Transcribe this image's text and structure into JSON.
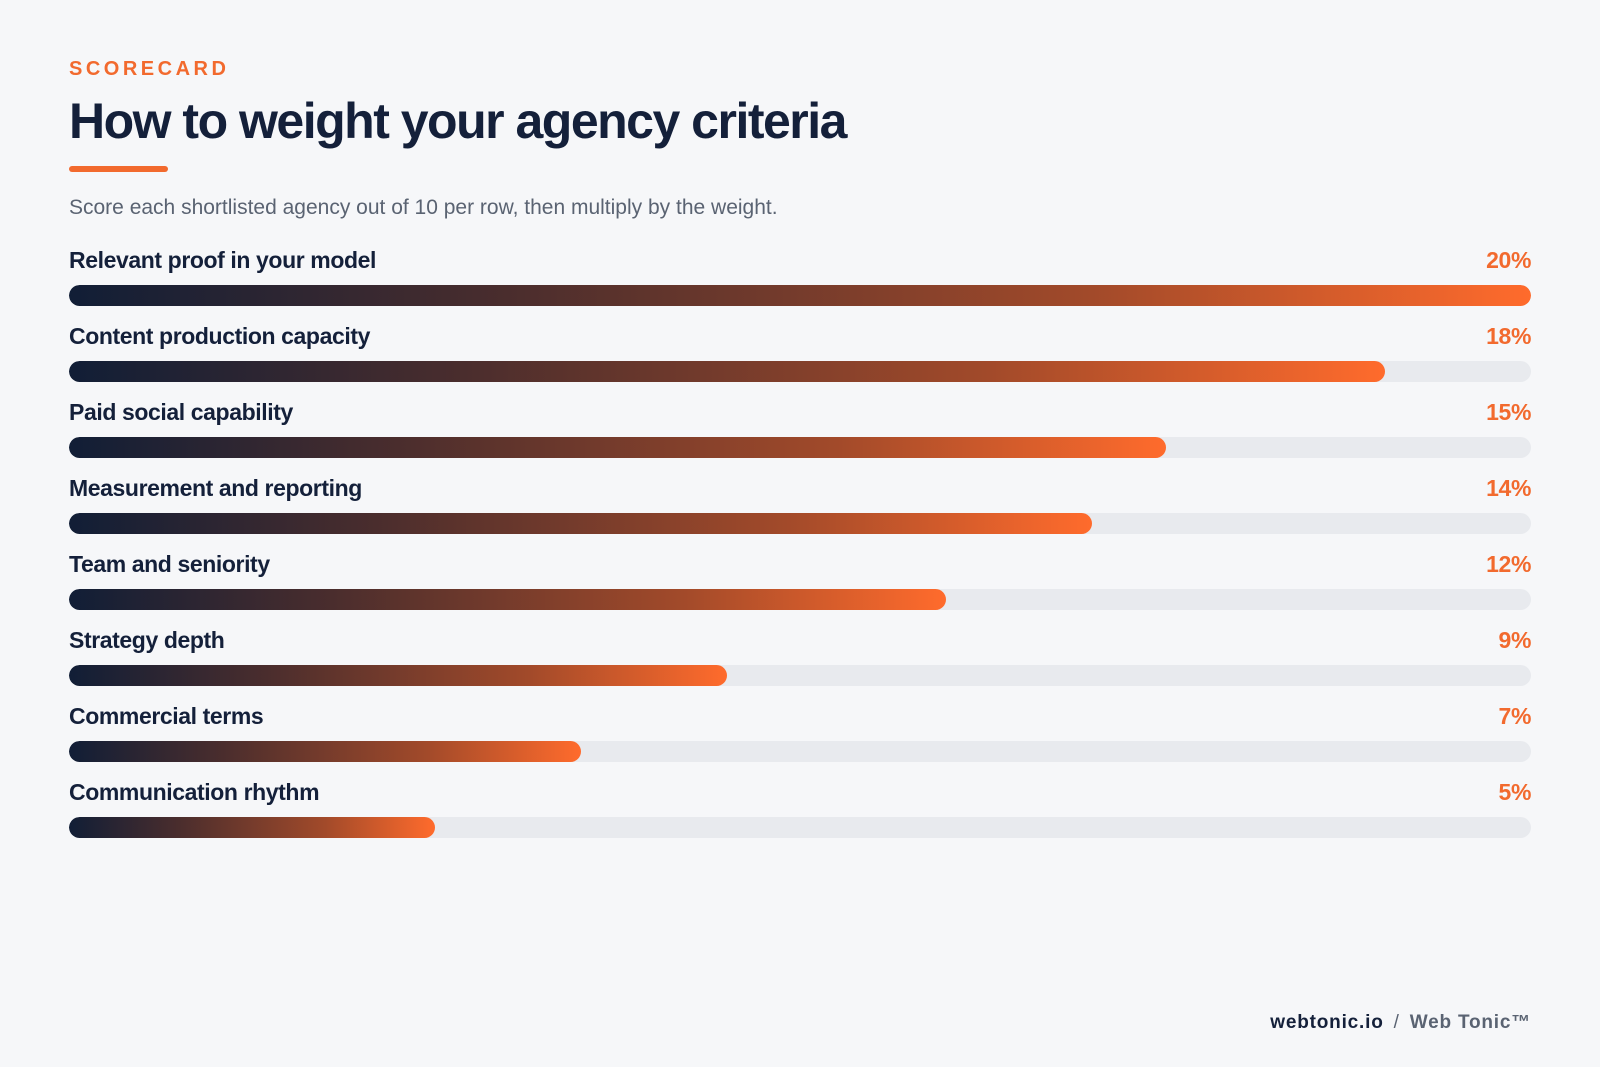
{
  "header": {
    "eyebrow": "SCORECARD",
    "title": "How to weight your agency criteria",
    "subtitle": "Score each shortlisted agency out of 10 per row, then multiply by the weight."
  },
  "chart_data": {
    "type": "bar",
    "orientation": "horizontal",
    "categories": [
      "Relevant proof in your model",
      "Content production capacity",
      "Paid social capability",
      "Measurement and reporting",
      "Team and seniority",
      "Strategy depth",
      "Commercial terms",
      "Communication rhythm"
    ],
    "values": [
      20,
      18,
      15,
      14,
      12,
      9,
      7,
      5
    ],
    "value_labels": [
      "20%",
      "18%",
      "15%",
      "14%",
      "12%",
      "9%",
      "7%",
      "5%"
    ],
    "xlim": [
      0,
      20
    ],
    "grid": false,
    "legend": "none",
    "colors": {
      "bar_start": "#111e36",
      "bar_end": "#ff6b2c",
      "track": "#e8eaee",
      "accent": "#f26a2e"
    }
  },
  "footer": {
    "domain": "webtonic.io",
    "separator": "/",
    "brand": "Web Tonic™"
  }
}
